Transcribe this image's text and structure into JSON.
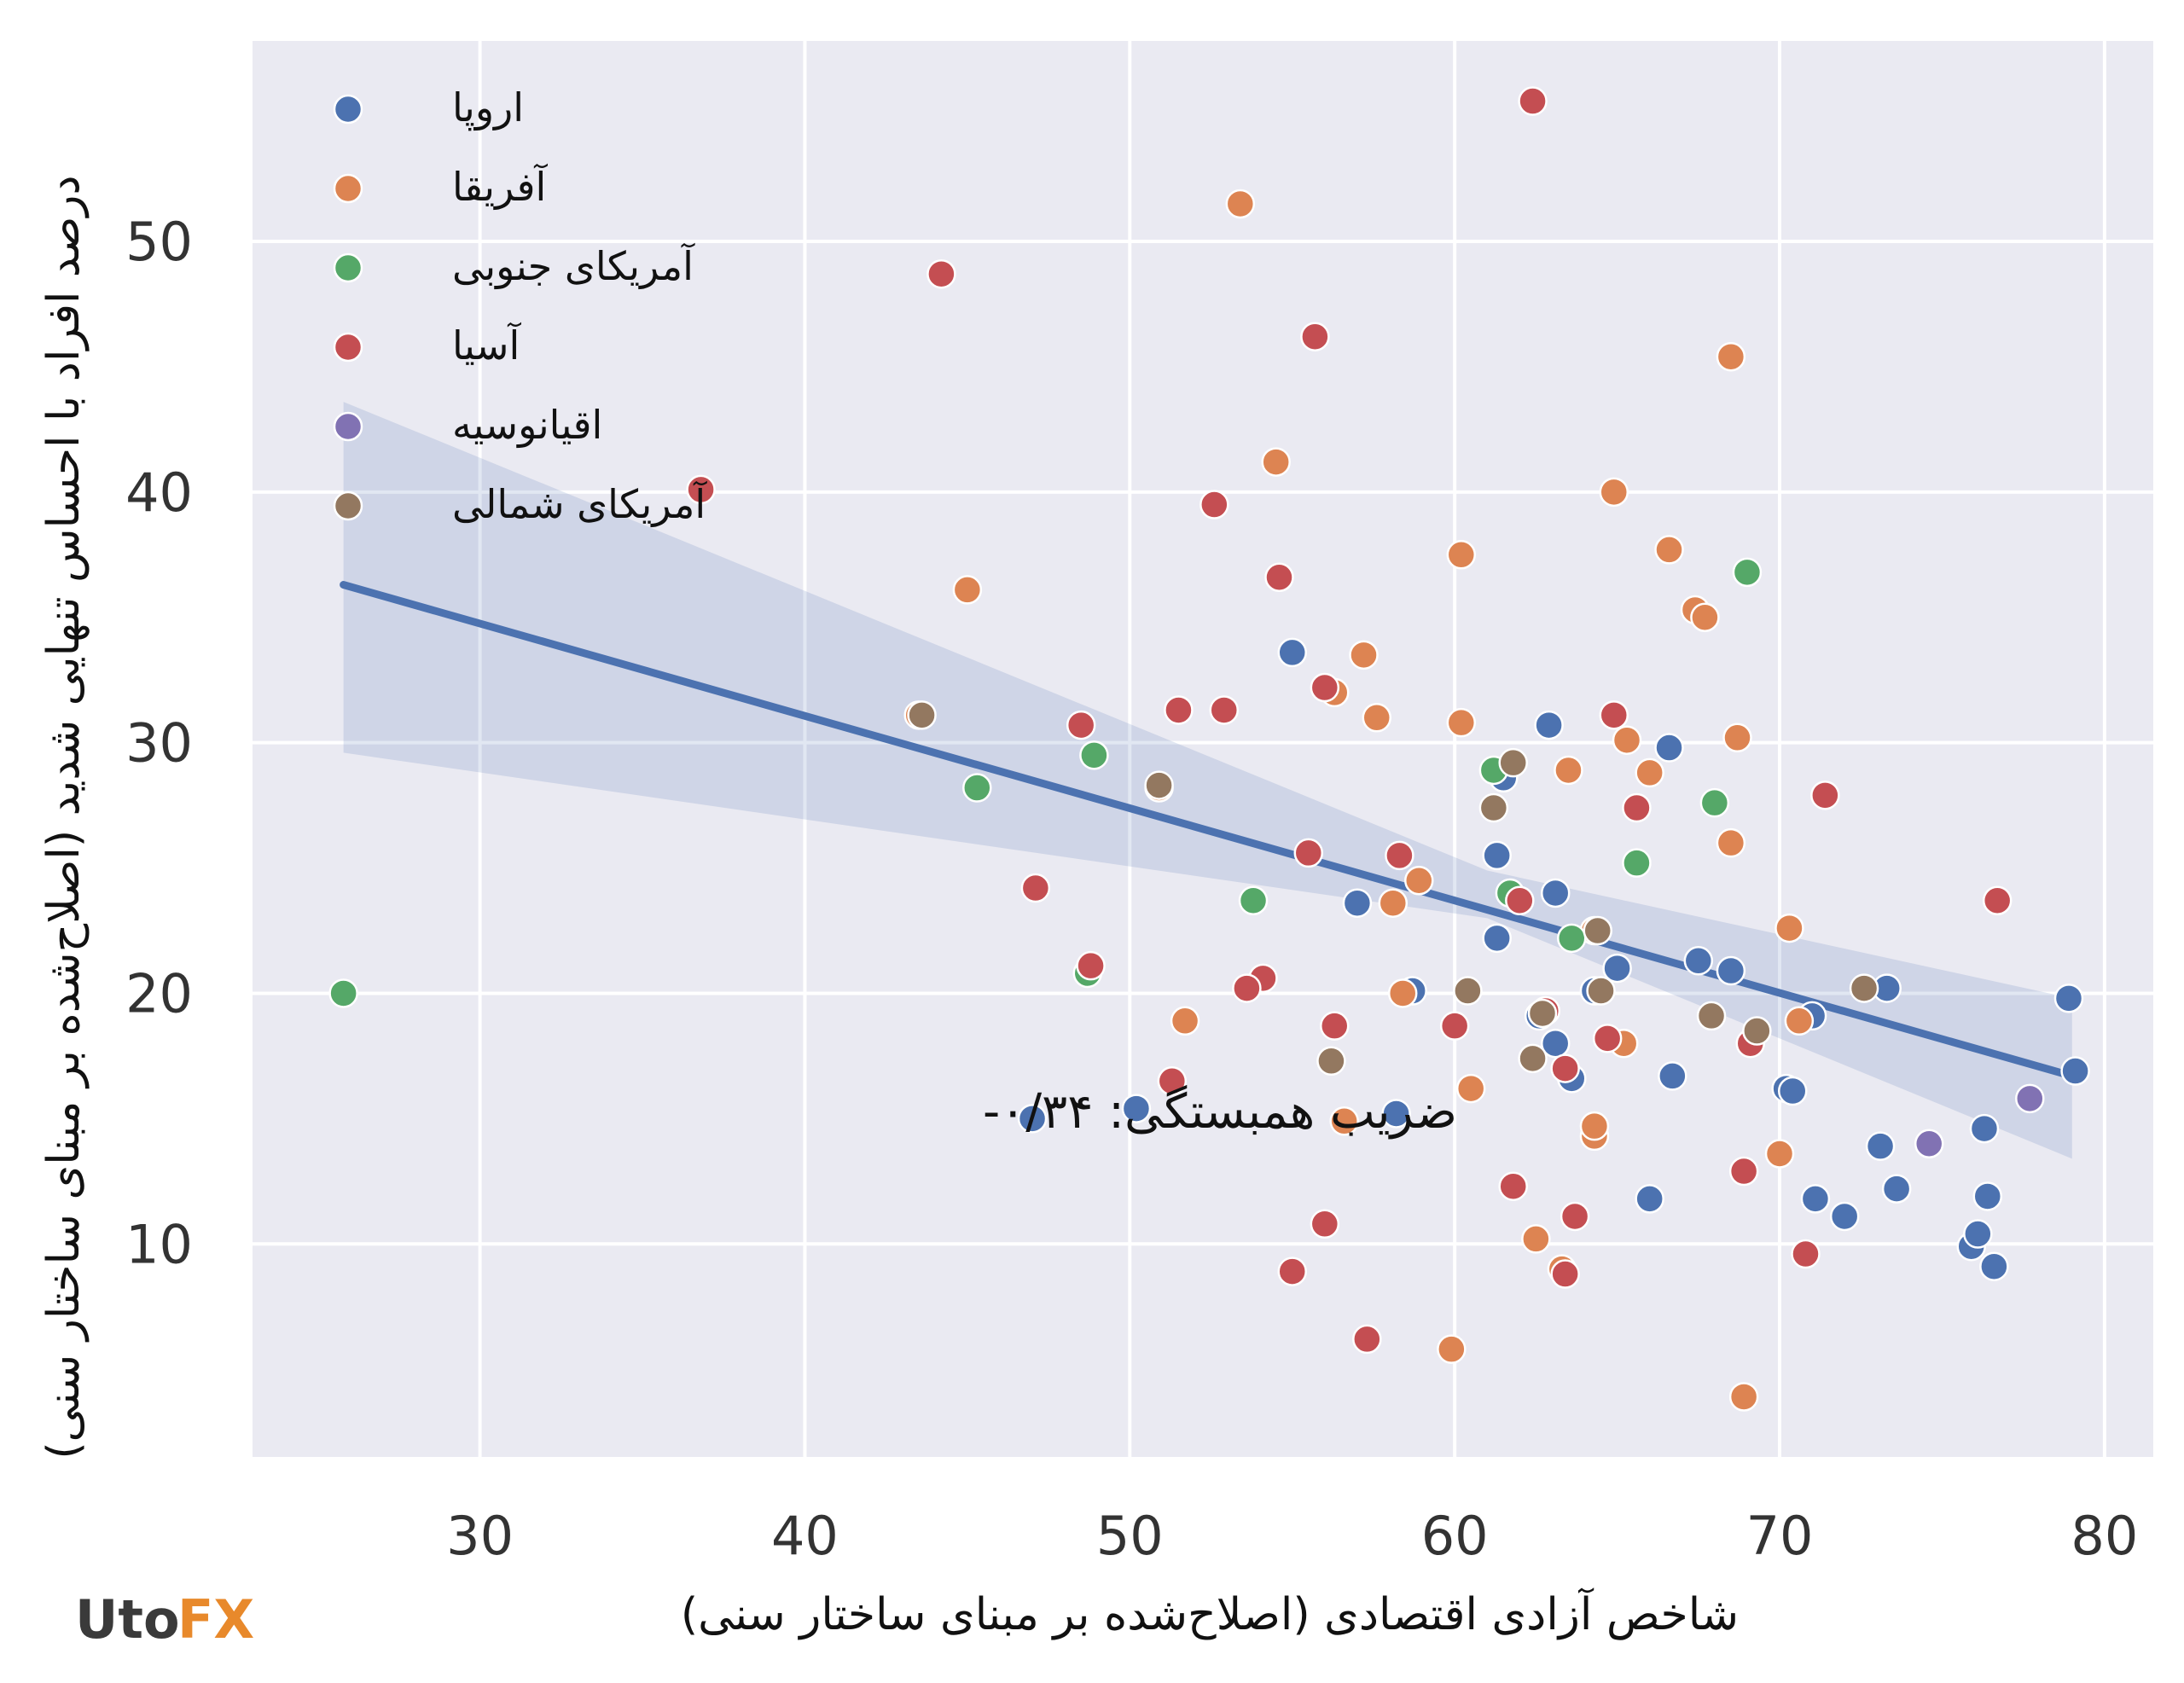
{
  "chart_data": {
    "type": "scatter",
    "xlabel": "شاخص آزادی اقتصادی (اصلاح‌شده بر مبنای ساختار سنی)",
    "ylabel": "درصد افراد با احساس تنهایی شدید (اصلاح‌شده بر مبنای ساختار سنی)",
    "xlim": [
      23,
      81.5
    ],
    "ylim": [
      1.5,
      58
    ],
    "x_ticks": [
      30,
      40,
      50,
      60,
      70,
      80
    ],
    "y_ticks": [
      10,
      20,
      30,
      40,
      50
    ],
    "grid": true,
    "legend_position": "top-left",
    "annotation": "ضریب همبستگی: ۰/۳۴-",
    "regression": {
      "x": [
        25.8,
        79.0
      ],
      "y": [
        36.3,
        16.7
      ],
      "ci_upper": [
        43.6,
        19.8
      ],
      "ci_lower": [
        29.6,
        13.4
      ],
      "ci_mid_upper": 24.9,
      "ci_mid_lower": 23.0,
      "ci_mid_x": 61.0
    },
    "series": [
      {
        "name": "اروپا",
        "color": "#4c72b0",
        "points": [
          [
            55.0,
            33.6
          ],
          [
            62.9,
            30.7
          ],
          [
            66.6,
            29.8
          ],
          [
            61.5,
            28.6
          ],
          [
            61.3,
            25.5
          ],
          [
            63.1,
            24.0
          ],
          [
            57.0,
            23.6
          ],
          [
            61.3,
            22.2
          ],
          [
            65.0,
            21.0
          ],
          [
            67.5,
            21.3
          ],
          [
            68.5,
            20.9
          ],
          [
            64.3,
            20.1
          ],
          [
            58.7,
            20.1
          ],
          [
            62.6,
            19.1
          ],
          [
            63.1,
            18.0
          ],
          [
            63.6,
            16.6
          ],
          [
            66.7,
            16.7
          ],
          [
            73.3,
            20.2
          ],
          [
            71.0,
            19.1
          ],
          [
            70.2,
            16.2
          ],
          [
            70.4,
            16.1
          ],
          [
            71.1,
            11.8
          ],
          [
            72.0,
            11.1
          ],
          [
            73.1,
            13.9
          ],
          [
            73.6,
            12.2
          ],
          [
            76.3,
            14.6
          ],
          [
            76.4,
            11.9
          ],
          [
            75.9,
            9.9
          ],
          [
            76.1,
            10.4
          ],
          [
            76.6,
            9.1
          ],
          [
            78.9,
            19.8
          ],
          [
            79.1,
            16.9
          ],
          [
            58.2,
            15.2
          ],
          [
            50.2,
            15.4
          ],
          [
            47.0,
            15.0
          ],
          [
            66.0,
            11.8
          ]
        ]
      },
      {
        "name": "آفریقا",
        "color": "#dd8452",
        "points": [
          [
            53.4,
            51.5
          ],
          [
            68.5,
            45.4
          ],
          [
            54.5,
            41.2
          ],
          [
            64.9,
            40.0
          ],
          [
            60.2,
            37.5
          ],
          [
            66.6,
            37.7
          ],
          [
            45.0,
            36.1
          ],
          [
            67.4,
            35.3
          ],
          [
            67.7,
            35.0
          ],
          [
            57.2,
            33.5
          ],
          [
            56.3,
            32.0
          ],
          [
            57.6,
            31.0
          ],
          [
            60.2,
            30.8
          ],
          [
            65.3,
            30.1
          ],
          [
            68.7,
            30.2
          ],
          [
            63.5,
            28.9
          ],
          [
            66.0,
            28.8
          ],
          [
            68.5,
            26.0
          ],
          [
            58.9,
            24.5
          ],
          [
            58.1,
            23.6
          ],
          [
            64.3,
            22.5
          ],
          [
            70.3,
            22.6
          ],
          [
            58.4,
            20.0
          ],
          [
            51.7,
            18.9
          ],
          [
            65.2,
            18.0
          ],
          [
            70.6,
            18.9
          ],
          [
            56.6,
            14.9
          ],
          [
            60.5,
            16.2
          ],
          [
            64.3,
            14.3
          ],
          [
            64.3,
            14.7
          ],
          [
            70.0,
            13.6
          ],
          [
            62.5,
            10.2
          ],
          [
            63.3,
            9.0
          ],
          [
            59.9,
            5.8
          ],
          [
            68.9,
            3.9
          ],
          [
            43.5,
            31.1
          ],
          [
            50.9,
            28.2
          ]
        ]
      },
      {
        "name": "آمریکای جنوبی",
        "color": "#55a868",
        "points": [
          [
            25.8,
            20.0
          ],
          [
            45.3,
            28.2
          ],
          [
            48.9,
            29.5
          ],
          [
            53.8,
            23.7
          ],
          [
            48.7,
            20.8
          ],
          [
            61.2,
            28.9
          ],
          [
            65.6,
            25.2
          ],
          [
            63.6,
            22.2
          ],
          [
            68.0,
            27.6
          ],
          [
            69.0,
            36.8
          ],
          [
            61.7,
            24.0
          ]
        ]
      },
      {
        "name": "آسیا",
        "color": "#c44e52",
        "points": [
          [
            62.4,
            55.6
          ],
          [
            44.2,
            48.7
          ],
          [
            55.7,
            46.2
          ],
          [
            36.8,
            40.1
          ],
          [
            52.6,
            39.5
          ],
          [
            54.6,
            36.6
          ],
          [
            56.0,
            32.2
          ],
          [
            51.5,
            31.3
          ],
          [
            52.9,
            31.3
          ],
          [
            48.5,
            30.7
          ],
          [
            64.9,
            31.1
          ],
          [
            71.4,
            27.9
          ],
          [
            65.6,
            27.4
          ],
          [
            55.5,
            25.6
          ],
          [
            58.3,
            25.5
          ],
          [
            62.0,
            23.7
          ],
          [
            47.1,
            24.2
          ],
          [
            48.8,
            21.1
          ],
          [
            54.1,
            20.6
          ],
          [
            53.6,
            20.2
          ],
          [
            56.3,
            18.7
          ],
          [
            60.0,
            18.7
          ],
          [
            64.7,
            18.2
          ],
          [
            69.1,
            18.0
          ],
          [
            51.3,
            16.5
          ],
          [
            62.8,
            19.3
          ],
          [
            63.4,
            17.0
          ],
          [
            76.7,
            23.7
          ],
          [
            61.8,
            12.3
          ],
          [
            63.7,
            11.1
          ],
          [
            56.0,
            10.8
          ],
          [
            55.0,
            8.9
          ],
          [
            57.3,
            6.2
          ],
          [
            70.8,
            9.6
          ],
          [
            63.4,
            8.8
          ],
          [
            68.9,
            12.9
          ]
        ]
      },
      {
        "name": "اقیانوسیه",
        "color": "#8172b3",
        "points": [
          [
            74.6,
            14.0
          ],
          [
            77.7,
            15.8
          ]
        ]
      },
      {
        "name": "آمریکای شمالی",
        "color": "#937860",
        "points": [
          [
            43.6,
            31.1
          ],
          [
            50.9,
            28.3
          ],
          [
            61.8,
            29.2
          ],
          [
            61.2,
            27.4
          ],
          [
            64.4,
            22.5
          ],
          [
            64.5,
            20.1
          ],
          [
            60.4,
            20.1
          ],
          [
            56.2,
            17.3
          ],
          [
            62.4,
            17.4
          ],
          [
            62.7,
            19.2
          ],
          [
            67.9,
            19.1
          ],
          [
            69.3,
            18.5
          ],
          [
            72.6,
            20.2
          ]
        ]
      }
    ]
  },
  "branding": {
    "logo_left": "Uto",
    "logo_right": "FX",
    "logo_accent_color": "#e8892b"
  }
}
